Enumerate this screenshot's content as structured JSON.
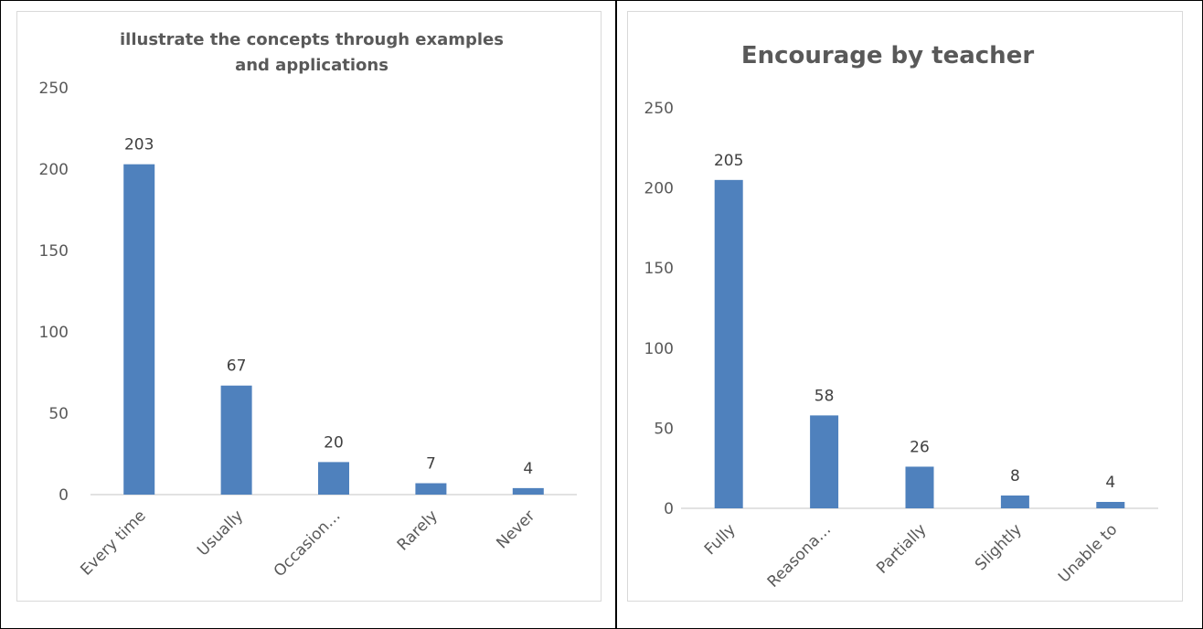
{
  "chart_data": [
    {
      "type": "bar",
      "title_lines": [
        "illustrate the concepts through examples",
        "and applications"
      ],
      "categories": [
        "Every time",
        "Usually",
        "Occasion…",
        "Rarely",
        "Never"
      ],
      "values": [
        203,
        67,
        20,
        7,
        4
      ],
      "ylim": [
        0,
        250
      ],
      "yticks": [
        0,
        50,
        100,
        150,
        200,
        250
      ],
      "xlabel": "",
      "ylabel": "",
      "grid": false,
      "legend": "none",
      "bar_color": "#4f81bd"
    },
    {
      "type": "bar",
      "title_lines": [
        "Encourage by teacher"
      ],
      "categories": [
        "Fully",
        "Reasona…",
        "Partially",
        "Slightly",
        "Unable to"
      ],
      "values": [
        205,
        58,
        26,
        8,
        4
      ],
      "ylim": [
        0,
        250
      ],
      "yticks": [
        0,
        50,
        100,
        150,
        200,
        250
      ],
      "xlabel": "",
      "ylabel": "",
      "grid": false,
      "legend": "none",
      "bar_color": "#4f81bd"
    }
  ],
  "colors": {
    "bar": "#4f81bd",
    "title": "#595959",
    "axis_line": "#d9d9d9"
  }
}
